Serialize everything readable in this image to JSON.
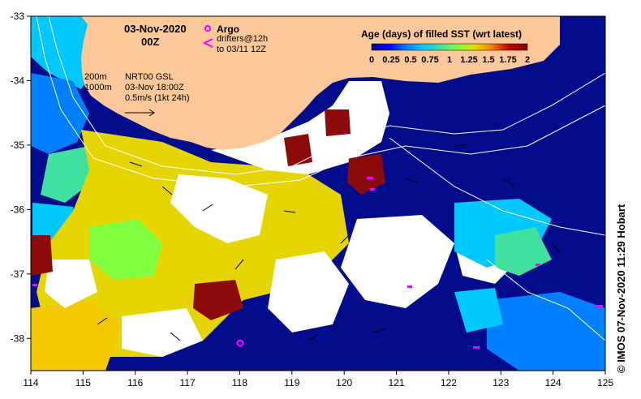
{
  "map": {
    "date": "03-Nov-2020",
    "hour": "00Z",
    "region": {
      "lon_min": 114,
      "lon_max": 125,
      "lat_min": -38.5,
      "lat_max": -33
    },
    "lon_ticks": [
      114,
      115,
      116,
      117,
      118,
      119,
      120,
      121,
      122,
      123,
      124,
      125
    ],
    "lat_ticks": [
      -33,
      -34,
      -35,
      -36,
      -37,
      -38
    ],
    "land_color": "#fcc899",
    "no_data_color": "#ffffff"
  },
  "legend": {
    "argo_label": "Argo",
    "argo_color": "#ff00ff",
    "drifters_label_1": "drifters@12h",
    "drifters_label_2": "to 03/11 12Z",
    "colorbar_title": "Age (days) of filled SST (wrt latest)",
    "colorbar_ticks": [
      "0",
      "0.25",
      "0.5",
      "0.75",
      "1",
      "1.25",
      "1.5",
      "1.75",
      "2"
    ],
    "colorbar_colors": [
      "#00007f",
      "#0000ff",
      "#0080ff",
      "#00c8ff",
      "#40e0a0",
      "#80ff40",
      "#e0e000",
      "#ff8000",
      "#c00000",
      "#800000"
    ]
  },
  "annotations": {
    "isobath_1": "200m",
    "isobath_2": "1000m",
    "current_product": "NRT00 GSL",
    "current_time": "03-Nov 18:00Z",
    "vector_scale": "0.5m/s (1kt 24h)"
  },
  "credit": "© IMOS 07-Nov-2020 11:29 Hobart"
}
